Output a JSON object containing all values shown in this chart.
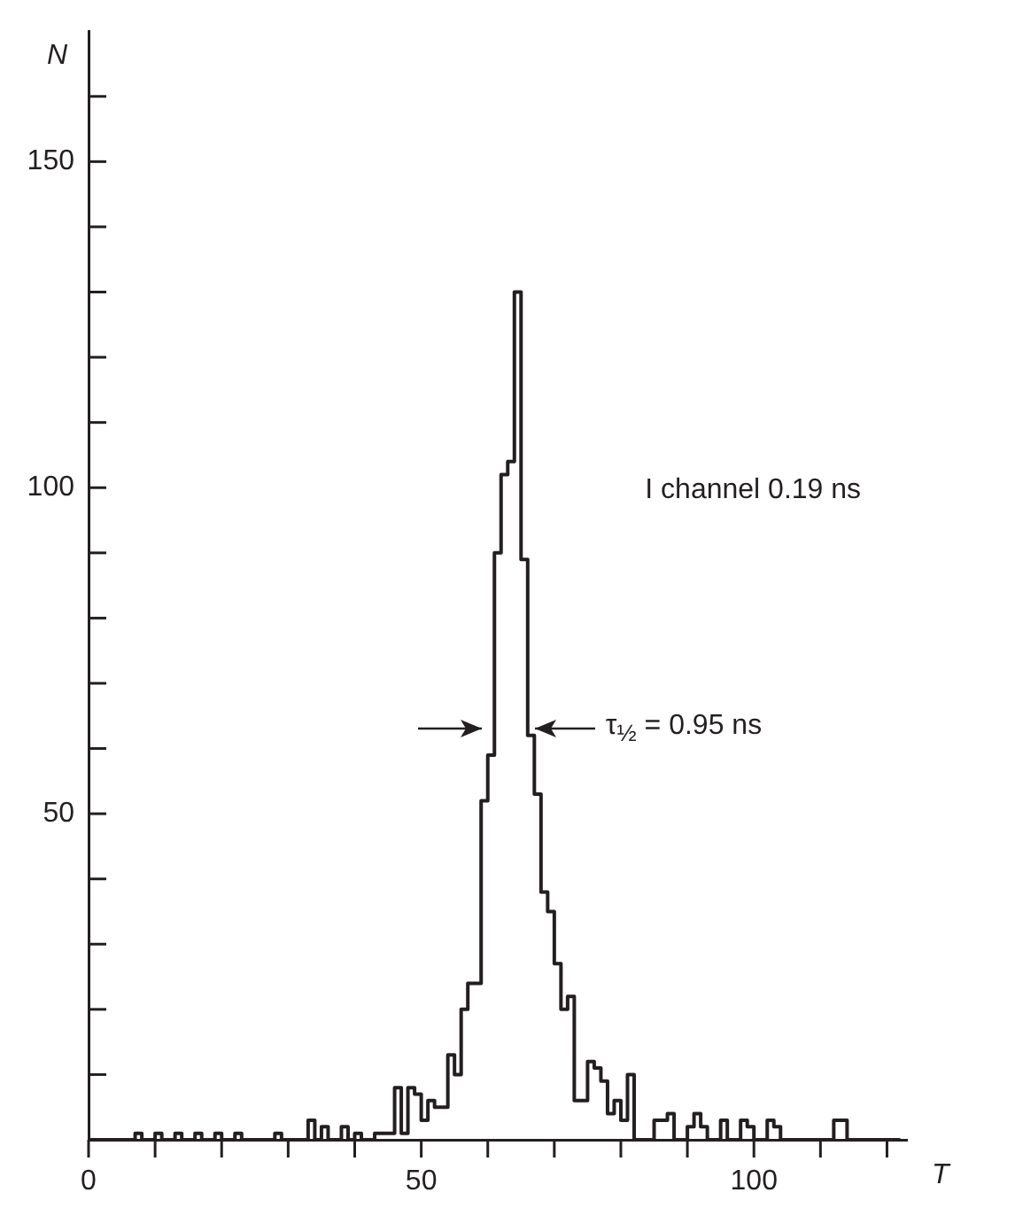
{
  "chart_data": {
    "type": "histogram",
    "xlabel": "T",
    "ylabel": "N",
    "bins": [
      0,
      1,
      2,
      3,
      4,
      5,
      6,
      7,
      8,
      9,
      10,
      11,
      12,
      13,
      14,
      15,
      16,
      17,
      18,
      19,
      20,
      21,
      22,
      23,
      24,
      25,
      26,
      27,
      28,
      29,
      30,
      31,
      32,
      33,
      34,
      35,
      36,
      37,
      38,
      39,
      40,
      41,
      42,
      43,
      44,
      45,
      46,
      47,
      48,
      49,
      50,
      51,
      52,
      53,
      54,
      55,
      56,
      57,
      58,
      59,
      60,
      61,
      62,
      63,
      64,
      65,
      66,
      67,
      68,
      69,
      70,
      71,
      72,
      73,
      74,
      75,
      76,
      77,
      78,
      79,
      80,
      81,
      82,
      83,
      84,
      85,
      86,
      87,
      88,
      89,
      90,
      91,
      92,
      93,
      94,
      95,
      96,
      97,
      98,
      99,
      100,
      101,
      102,
      103,
      104,
      105,
      106,
      107,
      108,
      109,
      110,
      111,
      112,
      113,
      114,
      115,
      116,
      117,
      118,
      119,
      120,
      121,
      122
    ],
    "values": [
      0,
      0,
      0,
      0,
      0,
      0,
      0,
      1,
      0,
      0,
      1,
      0,
      0,
      1,
      0,
      0,
      1,
      0,
      0,
      1,
      0,
      0,
      1,
      0,
      0,
      0,
      0,
      0,
      1,
      0,
      0,
      0,
      0,
      3,
      0,
      2,
      0,
      0,
      2,
      0,
      1,
      0,
      0,
      1,
      1,
      1,
      8,
      1,
      8,
      7,
      3,
      6,
      5,
      5,
      13,
      10,
      20,
      24,
      24,
      52,
      59,
      90,
      102,
      104,
      130,
      89,
      62,
      53,
      38,
      35,
      27,
      20,
      22,
      6,
      6,
      12,
      11,
      9,
      4,
      6,
      3,
      10,
      0,
      0,
      0,
      3,
      3,
      4,
      0,
      0,
      2,
      4,
      2,
      0,
      0,
      3,
      0,
      0,
      3,
      2,
      0,
      0,
      3,
      2,
      0,
      0,
      0,
      0,
      0,
      0,
      0,
      0,
      3,
      3,
      0,
      0,
      0,
      0,
      0,
      0,
      0,
      0
    ],
    "color": "#231f20",
    "xlim": [
      0,
      123
    ],
    "ylim": [
      0,
      170
    ],
    "xticks": [
      0,
      {
        "value": 10,
        "label": null
      },
      {
        "value": 20,
        "label": null
      },
      {
        "value": 30,
        "label": null
      },
      {
        "value": 40,
        "label": null
      },
      50,
      {
        "value": 60,
        "label": null
      },
      {
        "value": 70,
        "label": null
      },
      {
        "value": 80,
        "label": null
      },
      {
        "value": 90,
        "label": null
      },
      100,
      {
        "value": 110,
        "label": null
      },
      {
        "value": 120,
        "label": null
      }
    ],
    "yticks": [
      {
        "value": 10,
        "label": null
      },
      {
        "value": 20,
        "label": null
      },
      {
        "value": 30,
        "label": null
      },
      {
        "value": 40,
        "label": null
      },
      50,
      {
        "value": 60,
        "label": null
      },
      {
        "value": 70,
        "label": null
      },
      {
        "value": 80,
        "label": null
      },
      {
        "value": 90,
        "label": null
      },
      100,
      {
        "value": 110,
        "label": null
      },
      {
        "value": 120,
        "label": null
      },
      {
        "value": 130,
        "label": null
      },
      {
        "value": 140,
        "label": null
      },
      150,
      {
        "value": 160,
        "label": null
      }
    ],
    "annotations": [
      "I channel 0.19 ns",
      {
        "text": "τ$_{½}$ = 0.95 ns",
        "x": 66,
        "y": 63
      }
    ],
    "grid": false,
    "legend": false
  }
}
